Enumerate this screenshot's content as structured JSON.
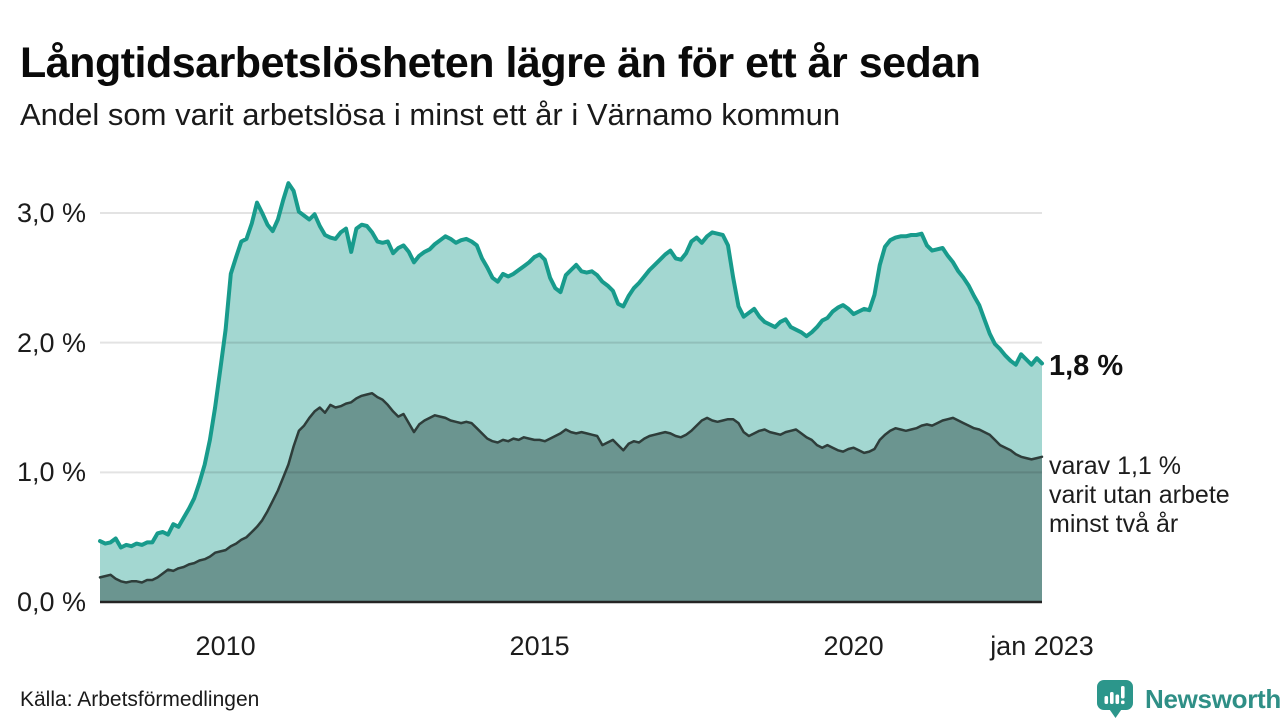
{
  "header": {
    "title": "Långtidsarbetslösheten lägre än för ett år sedan",
    "subtitle": "Andel som varit arbetslösa i minst ett år i Värnamo kommun"
  },
  "annotations": {
    "latest_value": "1,8 %",
    "secondary": "varav 1,1 %\nvarit utan arbete\nminst två år"
  },
  "footer": {
    "source": "Källa: Arbetsförmedlingen",
    "logo_text": "Newsworthy"
  },
  "colors": {
    "line_one_year": "#189b8c",
    "fill_one_year": "rgba(24,155,140,0.40)",
    "line_two_years": "#2e3d3a",
    "fill_two_years": "rgba(45,75,70,0.47)",
    "gridline": "rgba(0,0,0,0.11)",
    "axis": "#242424",
    "logo_teal": "#2c968b"
  },
  "chart_data": {
    "type": "area",
    "title": "Långtidsarbetslösheten lägre än för ett år sedan",
    "subtitle": "Andel som varit arbetslösa i minst ett år i Värnamo kommun",
    "x_unit": "monthly points, jan 2008 – jan 2023",
    "x_start": 2008,
    "x_end": 2023,
    "points_per_year": 12,
    "ylim": [
      0,
      3.35
    ],
    "grid": true,
    "yticks": [
      {
        "label": "0,0 %",
        "value": 0
      },
      {
        "label": "1,0 %",
        "value": 1
      },
      {
        "label": "2,0 %",
        "value": 2
      },
      {
        "label": "3,0 %",
        "value": 3
      }
    ],
    "xticks": [
      {
        "label": "2010",
        "value": 2010
      },
      {
        "label": "2015",
        "value": 2015
      },
      {
        "label": "2020",
        "value": 2020
      },
      {
        "label": "jan 2023",
        "value": 2023
      }
    ],
    "series": [
      {
        "name": "Andel som varit arbetslösa i minst ett år",
        "end_label": "1,8 %",
        "color": "#189b8c",
        "fill": "rgba(24,155,140,0.40)",
        "stroke_width": 4,
        "values": [
          0.47,
          0.45,
          0.46,
          0.49,
          0.42,
          0.44,
          0.43,
          0.45,
          0.44,
          0.46,
          0.46,
          0.53,
          0.54,
          0.52,
          0.6,
          0.58,
          0.65,
          0.72,
          0.8,
          0.92,
          1.06,
          1.25,
          1.5,
          1.8,
          2.1,
          2.53,
          2.66,
          2.78,
          2.8,
          2.92,
          3.08,
          3.0,
          2.91,
          2.86,
          2.95,
          3.1,
          3.23,
          3.17,
          3.01,
          2.98,
          2.95,
          2.99,
          2.9,
          2.83,
          2.81,
          2.8,
          2.85,
          2.88,
          2.7,
          2.88,
          2.91,
          2.9,
          2.85,
          2.78,
          2.77,
          2.78,
          2.69,
          2.73,
          2.75,
          2.7,
          2.62,
          2.67,
          2.7,
          2.72,
          2.76,
          2.79,
          2.82,
          2.8,
          2.77,
          2.79,
          2.8,
          2.78,
          2.75,
          2.65,
          2.58,
          2.5,
          2.47,
          2.53,
          2.51,
          2.53,
          2.56,
          2.59,
          2.62,
          2.66,
          2.68,
          2.64,
          2.5,
          2.42,
          2.39,
          2.52,
          2.56,
          2.6,
          2.55,
          2.54,
          2.55,
          2.52,
          2.47,
          2.44,
          2.4,
          2.3,
          2.28,
          2.36,
          2.42,
          2.46,
          2.51,
          2.56,
          2.6,
          2.64,
          2.68,
          2.71,
          2.65,
          2.64,
          2.69,
          2.78,
          2.81,
          2.77,
          2.82,
          2.85,
          2.84,
          2.83,
          2.75,
          2.5,
          2.28,
          2.2,
          2.23,
          2.26,
          2.2,
          2.16,
          2.14,
          2.12,
          2.16,
          2.18,
          2.12,
          2.1,
          2.08,
          2.05,
          2.08,
          2.12,
          2.17,
          2.19,
          2.24,
          2.27,
          2.29,
          2.26,
          2.22,
          2.24,
          2.26,
          2.25,
          2.37,
          2.6,
          2.74,
          2.79,
          2.81,
          2.82,
          2.82,
          2.83,
          2.83,
          2.84,
          2.75,
          2.71,
          2.72,
          2.73,
          2.67,
          2.62,
          2.55,
          2.5,
          2.44,
          2.36,
          2.29,
          2.18,
          2.07,
          1.99,
          1.95,
          1.9,
          1.86,
          1.83,
          1.91,
          1.87,
          1.83,
          1.88,
          1.84
        ]
      },
      {
        "name": "varav arbetslösa minst två år",
        "end_label": "varav 1,1 %",
        "color": "#2e3d3a",
        "fill": "rgba(45,75,70,0.47)",
        "stroke_width": 2.5,
        "values": [
          0.19,
          0.2,
          0.21,
          0.18,
          0.16,
          0.15,
          0.16,
          0.16,
          0.15,
          0.17,
          0.17,
          0.19,
          0.22,
          0.25,
          0.24,
          0.26,
          0.27,
          0.29,
          0.3,
          0.32,
          0.33,
          0.35,
          0.38,
          0.39,
          0.4,
          0.43,
          0.45,
          0.48,
          0.5,
          0.54,
          0.58,
          0.63,
          0.7,
          0.78,
          0.86,
          0.96,
          1.06,
          1.2,
          1.32,
          1.36,
          1.42,
          1.47,
          1.5,
          1.46,
          1.52,
          1.5,
          1.51,
          1.53,
          1.54,
          1.57,
          1.59,
          1.6,
          1.61,
          1.58,
          1.56,
          1.52,
          1.47,
          1.43,
          1.45,
          1.38,
          1.31,
          1.37,
          1.4,
          1.42,
          1.44,
          1.43,
          1.42,
          1.4,
          1.39,
          1.38,
          1.39,
          1.38,
          1.34,
          1.3,
          1.26,
          1.24,
          1.23,
          1.25,
          1.24,
          1.26,
          1.25,
          1.27,
          1.26,
          1.25,
          1.25,
          1.24,
          1.26,
          1.28,
          1.3,
          1.33,
          1.31,
          1.3,
          1.31,
          1.3,
          1.29,
          1.28,
          1.21,
          1.23,
          1.25,
          1.21,
          1.17,
          1.22,
          1.24,
          1.23,
          1.26,
          1.28,
          1.29,
          1.3,
          1.31,
          1.3,
          1.28,
          1.27,
          1.29,
          1.32,
          1.36,
          1.4,
          1.42,
          1.4,
          1.39,
          1.4,
          1.41,
          1.41,
          1.38,
          1.31,
          1.28,
          1.3,
          1.32,
          1.33,
          1.31,
          1.3,
          1.29,
          1.31,
          1.32,
          1.33,
          1.3,
          1.27,
          1.25,
          1.21,
          1.19,
          1.21,
          1.19,
          1.17,
          1.16,
          1.18,
          1.19,
          1.17,
          1.15,
          1.16,
          1.18,
          1.25,
          1.29,
          1.32,
          1.34,
          1.33,
          1.32,
          1.33,
          1.34,
          1.36,
          1.37,
          1.36,
          1.38,
          1.4,
          1.41,
          1.42,
          1.4,
          1.38,
          1.36,
          1.34,
          1.33,
          1.31,
          1.29,
          1.25,
          1.21,
          1.19,
          1.17,
          1.14,
          1.12,
          1.11,
          1.1,
          1.11,
          1.12
        ]
      }
    ]
  }
}
